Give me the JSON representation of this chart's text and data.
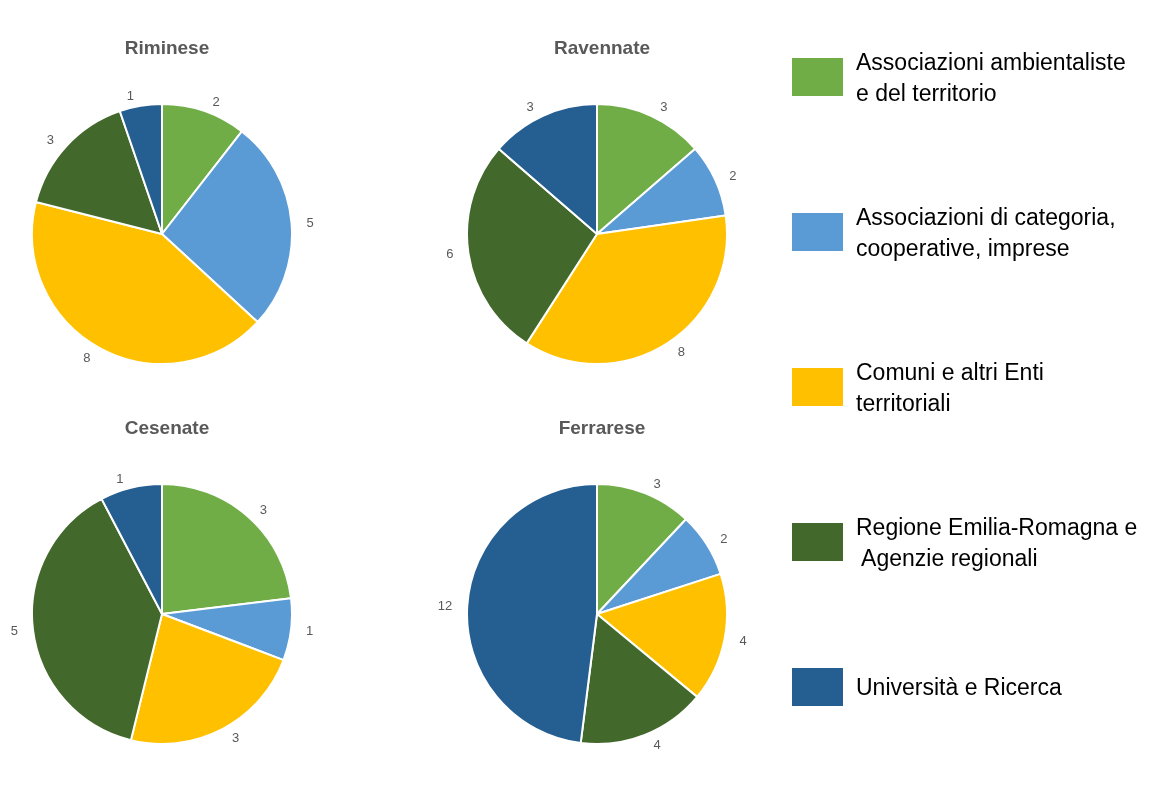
{
  "chart_data": [
    {
      "type": "pie",
      "title": "Riminese",
      "categories": [
        "Associazioni ambientaliste e del territorio",
        "Associazioni di categoria, cooperative, imprese",
        "Comuni e altri Enti territoriali",
        "Regione Emilia-Romagna e Agenzie regionali",
        "Università e Ricerca"
      ],
      "values": [
        2,
        5,
        8,
        3,
        1
      ],
      "colors": [
        "#70ad47",
        "#5b9bd5",
        "#ffc000",
        "#43682b",
        "#255e91"
      ],
      "data_labels": true,
      "legend": "right"
    },
    {
      "type": "pie",
      "title": "Ravennate",
      "categories": [
        null,
        null,
        null,
        null,
        null
      ],
      "values": [
        3,
        2,
        8,
        6,
        3
      ],
      "colors": [
        "#70ad47",
        "#5b9bd5",
        "#ffc000",
        "#43682b",
        "#255e91"
      ],
      "data_labels": true
    },
    {
      "type": "pie",
      "title": "Cesenate",
      "categories": [
        null,
        null,
        null,
        null,
        null
      ],
      "values": [
        3,
        1,
        3,
        5,
        1
      ],
      "colors": [
        "#70ad47",
        "#5b9bd5",
        "#ffc000",
        "#43682b",
        "#255e91"
      ],
      "data_labels": true
    },
    {
      "type": "pie",
      "title": "Ferrarese",
      "categories": [
        null,
        null,
        null,
        null,
        null
      ],
      "values": [
        3,
        2,
        4,
        4,
        12
      ],
      "colors": [
        "#70ad47",
        "#5b9bd5",
        "#ffc000",
        "#43682b",
        "#255e91"
      ],
      "data_labels": true
    }
  ]
}
